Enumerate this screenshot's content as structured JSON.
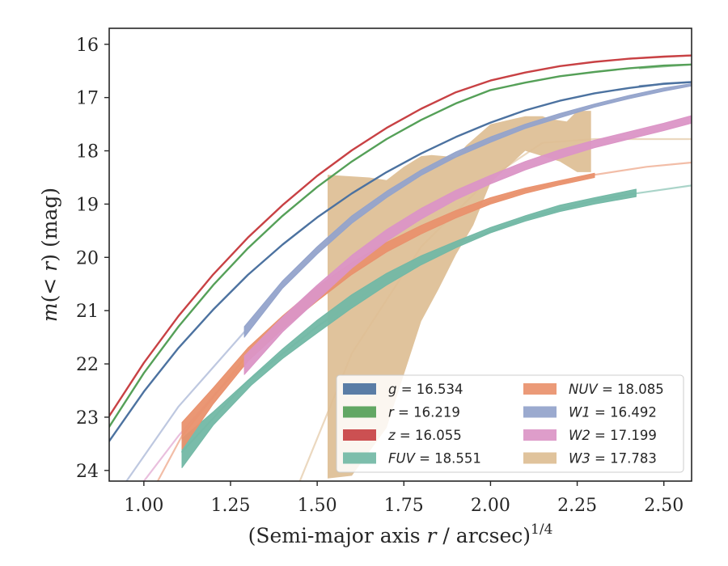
{
  "chart_data": {
    "type": "line",
    "xlabel_main": "(Semi-major axis ",
    "xlabel_var": "r",
    "xlabel_rest": " / arcsec)",
    "xlabel_sup": "1/4",
    "ylabel_m": "m",
    "ylabel_mid": "(< ",
    "ylabel_r": "r",
    "ylabel_end": ") (mag)",
    "xlim": [
      0.9,
      2.58
    ],
    "ylim": [
      24.2,
      15.7
    ],
    "y_inverted": true,
    "grid": false,
    "legend_position": "lower-right",
    "xticks": [
      1.0,
      1.25,
      1.5,
      1.75,
      2.0,
      2.25,
      2.5
    ],
    "xtick_labels": [
      "1.00",
      "1.25",
      "1.50",
      "1.75",
      "2.00",
      "2.25",
      "2.50"
    ],
    "yticks": [
      16,
      17,
      18,
      19,
      20,
      21,
      22,
      23,
      24
    ],
    "ytick_labels": [
      "16",
      "17",
      "18",
      "19",
      "20",
      "21",
      "22",
      "23",
      "24"
    ],
    "series": [
      {
        "band": "g",
        "value": "16.534",
        "color": "#4c72a0",
        "lw": 2.4,
        "fill_alpha": 0.9,
        "x": [
          0.9,
          1.0,
          1.1,
          1.2,
          1.3,
          1.4,
          1.5,
          1.6,
          1.7,
          1.8,
          1.9,
          2.0,
          2.1,
          2.2,
          2.3,
          2.4,
          2.5,
          2.58
        ],
        "y": [
          23.45,
          22.52,
          21.7,
          20.98,
          20.33,
          19.76,
          19.25,
          18.8,
          18.4,
          18.05,
          17.74,
          17.47,
          17.24,
          17.06,
          16.92,
          16.82,
          16.74,
          16.71
        ],
        "fit_x": [
          2.43,
          2.58
        ],
        "fit_y": [
          16.78,
          16.71
        ]
      },
      {
        "band": "r",
        "value": "16.219",
        "color": "#55a058",
        "lw": 2.4,
        "fill_alpha": 0.9,
        "x": [
          0.9,
          1.0,
          1.1,
          1.2,
          1.3,
          1.4,
          1.5,
          1.6,
          1.7,
          1.8,
          1.9,
          2.0,
          2.1,
          2.2,
          2.3,
          2.4,
          2.5,
          2.58
        ],
        "y": [
          23.18,
          22.17,
          21.3,
          20.52,
          19.83,
          19.22,
          18.68,
          18.2,
          17.78,
          17.42,
          17.11,
          16.86,
          16.72,
          16.6,
          16.52,
          16.45,
          16.4,
          16.38
        ],
        "fit_x": [
          2.43,
          2.58
        ],
        "fit_y": [
          16.45,
          16.38
        ]
      },
      {
        "band": "z",
        "value": "16.055",
        "color": "#c84144",
        "lw": 2.4,
        "fill_alpha": 0.9,
        "x": [
          0.9,
          1.0,
          1.1,
          1.2,
          1.3,
          1.4,
          1.5,
          1.6,
          1.7,
          1.8,
          1.9,
          2.0,
          2.1,
          2.2,
          2.3,
          2.4,
          2.5,
          2.58
        ],
        "y": [
          22.98,
          21.98,
          21.1,
          20.32,
          19.63,
          19.02,
          18.47,
          17.99,
          17.57,
          17.21,
          16.9,
          16.68,
          16.53,
          16.41,
          16.33,
          16.27,
          16.23,
          16.21
        ],
        "fit_x": [
          2.4,
          2.58
        ],
        "fit_y": [
          16.27,
          16.21
        ]
      },
      {
        "band": "FUV",
        "value": "18.551",
        "color": "#72b8a5",
        "fill_alpha": 0.95,
        "x": [
          1.11,
          1.2,
          1.31,
          1.4,
          1.5,
          1.6,
          1.7,
          1.8,
          1.9,
          2.0,
          2.1,
          2.2,
          2.3,
          2.42
        ],
        "ylow": [
          23.95,
          23.15,
          22.4,
          21.9,
          21.42,
          20.95,
          20.52,
          20.14,
          19.82,
          19.54,
          19.32,
          19.14,
          19.0,
          18.86
        ],
        "yhigh": [
          23.4,
          22.9,
          22.25,
          21.72,
          21.18,
          20.7,
          20.3,
          19.97,
          19.7,
          19.44,
          19.22,
          19.02,
          18.88,
          18.72
        ],
        "fit_x": [
          1.11,
          1.3,
          1.5,
          1.7,
          1.9,
          2.1,
          2.3,
          2.42,
          2.58
        ],
        "fit_y": [
          23.65,
          22.32,
          21.3,
          20.41,
          19.76,
          19.27,
          18.93,
          18.8,
          18.65
        ]
      },
      {
        "band": "NUV",
        "value": "18.085",
        "color": "#e9916d",
        "fill_alpha": 0.95,
        "x": [
          1.11,
          1.2,
          1.3,
          1.4,
          1.5,
          1.6,
          1.7,
          1.8,
          1.9,
          2.0,
          2.1,
          2.2,
          2.3
        ],
        "ylow": [
          23.6,
          22.75,
          21.95,
          21.35,
          20.82,
          20.32,
          19.9,
          19.56,
          19.26,
          19.0,
          18.8,
          18.64,
          18.5
        ],
        "yhigh": [
          23.1,
          22.45,
          21.7,
          21.1,
          20.55,
          20.1,
          19.72,
          19.4,
          19.12,
          18.88,
          18.7,
          18.56,
          18.42
        ],
        "fit_x": [
          1.04,
          1.11,
          1.3,
          1.5,
          1.7,
          1.9,
          2.1,
          2.3,
          2.45,
          2.58
        ],
        "fit_y": [
          24.2,
          23.35,
          21.82,
          20.68,
          19.8,
          19.18,
          18.74,
          18.45,
          18.3,
          18.22
        ]
      },
      {
        "band": "W1",
        "value": "16.492",
        "color": "#93a3cb",
        "fill_alpha": 0.95,
        "x": [
          1.29,
          1.4,
          1.5,
          1.6,
          1.7,
          1.8,
          1.9,
          2.0,
          2.1,
          2.2,
          2.3,
          2.4,
          2.5,
          2.58
        ],
        "ylow": [
          21.5,
          20.58,
          19.94,
          19.36,
          18.88,
          18.46,
          18.12,
          17.84,
          17.58,
          17.38,
          17.18,
          17.02,
          16.88,
          16.78
        ],
        "yhigh": [
          21.3,
          20.44,
          19.8,
          19.22,
          18.76,
          18.36,
          18.02,
          17.74,
          17.5,
          17.3,
          17.12,
          16.96,
          16.82,
          16.74
        ],
        "fit_x": [
          0.95,
          1.1,
          1.29
        ],
        "fit_y": [
          24.2,
          22.8,
          21.4
        ]
      },
      {
        "band": "W2",
        "value": "17.199",
        "color": "#db95c6",
        "fill_alpha": 0.95,
        "x": [
          1.29,
          1.4,
          1.5,
          1.6,
          1.7,
          1.8,
          1.9,
          2.0,
          2.1,
          2.2,
          2.3,
          2.4,
          2.5,
          2.58
        ],
        "ylow": [
          22.2,
          21.4,
          20.8,
          20.2,
          19.7,
          19.28,
          18.92,
          18.62,
          18.36,
          18.14,
          17.94,
          17.78,
          17.62,
          17.48
        ],
        "yhigh": [
          21.85,
          21.12,
          20.52,
          19.96,
          19.48,
          19.08,
          18.74,
          18.46,
          18.2,
          17.98,
          17.8,
          17.64,
          17.48,
          17.34
        ],
        "fit_x": [
          1.0,
          1.1,
          1.2,
          1.29
        ],
        "fit_y": [
          24.2,
          23.35,
          22.6,
          22.0
        ]
      },
      {
        "band": "W3",
        "value": "17.783",
        "color": "#ddbe94",
        "fill_alpha": 0.92,
        "upper_x": [
          1.53,
          1.65,
          1.7,
          1.75,
          1.8,
          1.83,
          1.9,
          1.93,
          2.0,
          2.1,
          2.15,
          2.17,
          2.22,
          2.25,
          2.29
        ],
        "upper_y": [
          18.45,
          18.5,
          18.55,
          18.3,
          18.1,
          18.08,
          18.12,
          17.9,
          17.5,
          17.35,
          17.35,
          17.4,
          17.45,
          17.25,
          17.25
        ],
        "lower_x": [
          2.29,
          2.25,
          2.2,
          2.1,
          2.05,
          2.0,
          1.95,
          1.9,
          1.85,
          1.8,
          1.75,
          1.7,
          1.6,
          1.53
        ],
        "lower_y": [
          18.4,
          18.4,
          18.2,
          18.0,
          18.3,
          18.6,
          19.4,
          19.95,
          20.6,
          21.2,
          22.2,
          23.2,
          24.1,
          24.15
        ],
        "fit_x": [
          1.45,
          1.6,
          1.8,
          2.0,
          2.15,
          2.3,
          2.58
        ],
        "fit_y": [
          24.2,
          21.8,
          19.8,
          18.5,
          17.85,
          17.78,
          17.78
        ]
      }
    ],
    "legend": [
      {
        "name": "g",
        "eq": " = 16.534",
        "color": "#4c72a0",
        "col": 0,
        "row": 0
      },
      {
        "name": "r",
        "eq": " = 16.219",
        "color": "#55a058",
        "col": 0,
        "row": 1
      },
      {
        "name": "z",
        "eq": " = 16.055",
        "color": "#c84144",
        "col": 0,
        "row": 2
      },
      {
        "name": "FUV",
        "eq": " = 18.551",
        "color": "#72b8a5",
        "col": 0,
        "row": 3
      },
      {
        "name": "NUV",
        "eq": " = 18.085",
        "color": "#e9916d",
        "col": 1,
        "row": 0
      },
      {
        "name": "W1",
        "eq": " = 16.492",
        "color": "#93a3cb",
        "col": 1,
        "row": 1
      },
      {
        "name": "W2",
        "eq": " = 17.199",
        "color": "#db95c6",
        "col": 1,
        "row": 2
      },
      {
        "name": "W3",
        "eq": " = 17.783",
        "color": "#ddbe94",
        "col": 1,
        "row": 3
      }
    ]
  }
}
